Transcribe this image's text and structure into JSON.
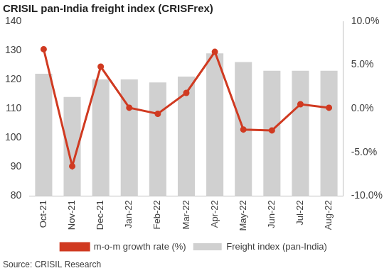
{
  "chart_data": {
    "type": "bar",
    "title": "CRISIL pan-India freight index (CRISFrex)",
    "source": "Source: CRISIL Research",
    "categories": [
      "Oct-21",
      "Nov-21",
      "Dec-21",
      "Jan-22",
      "Feb-22",
      "Mar-22",
      "Apr-22",
      "May-22",
      "Jun-22",
      "Jul-22",
      "Aug-22"
    ],
    "series": [
      {
        "name": "Freight index (pan-India)",
        "type": "bar",
        "color": "#d0d0d0",
        "data_labels": true,
        "values": [
          122,
          114,
          120,
          120,
          119,
          121,
          129,
          126,
          123,
          123,
          123
        ]
      },
      {
        "name": "m-o-m growth rate (%)",
        "type": "line",
        "color": "#d03a21",
        "marker": "circle",
        "axis": "y2",
        "values": [
          6.8,
          -6.6,
          4.8,
          0.1,
          -0.6,
          1.8,
          6.5,
          -2.4,
          -2.5,
          0.5,
          0.1
        ]
      }
    ],
    "ylim": [
      80,
      140
    ],
    "yticks": [
      80,
      90,
      100,
      110,
      120,
      130,
      140
    ],
    "y2lim": [
      -10,
      10
    ],
    "y2ticks": [
      {
        "value": -10,
        "label": "-10.0%"
      },
      {
        "value": -5,
        "label": "-5.0%"
      },
      {
        "value": 0,
        "label": "0.0%"
      },
      {
        "value": 5,
        "label": "5.0%"
      },
      {
        "value": 10,
        "label": "10.0%"
      }
    ],
    "grid": false,
    "legend": "bottom"
  }
}
